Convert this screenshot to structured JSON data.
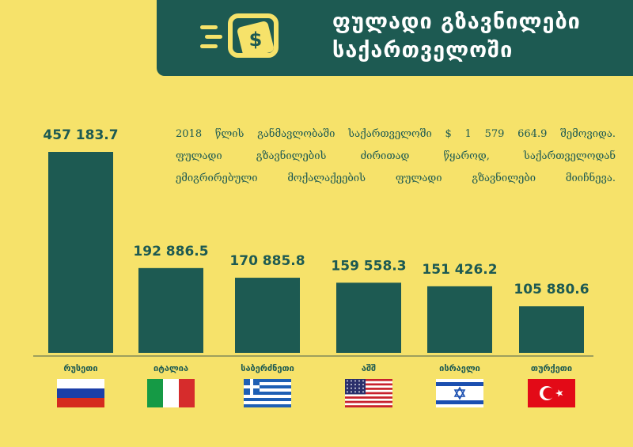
{
  "header": {
    "title_line1": "ფულადი გზავნილები",
    "title_line2": "საქართველოში"
  },
  "description": {
    "line1": "2018 წლის განმავლობაში საქართველოში $ 1 579 664.9 შემოვიდა.",
    "line2": "ფულადი გზავნილების ძირითად წყაროდ, საქართველოდან",
    "line3": "ემიგრირებული მოქალაქეების ფულადი გზავნილები მიიჩნევა."
  },
  "chart_data": {
    "type": "bar",
    "categories": [
      "რუსეთი",
      "იტალია",
      "საბერძნეთი",
      "აშშ",
      "ისრაელი",
      "თურქეთი"
    ],
    "values": [
      457183.7,
      192886.5,
      170885.8,
      159558.3,
      151426.2,
      105880.6
    ],
    "value_labels": [
      "457 183.7",
      "192 886.5",
      "170 885.8",
      "159 558.3",
      "151 426.2",
      "105 880.6"
    ],
    "flags": [
      "russia",
      "italy",
      "greece",
      "usa",
      "israel",
      "turkey"
    ],
    "title": "",
    "xlabel": "",
    "ylabel": "",
    "ylim": [
      0,
      457183.7
    ]
  },
  "colors": {
    "bar": "#1d5a52",
    "background": "#f6e26a",
    "header": "#1d5a52",
    "text": "#1d5a52"
  }
}
